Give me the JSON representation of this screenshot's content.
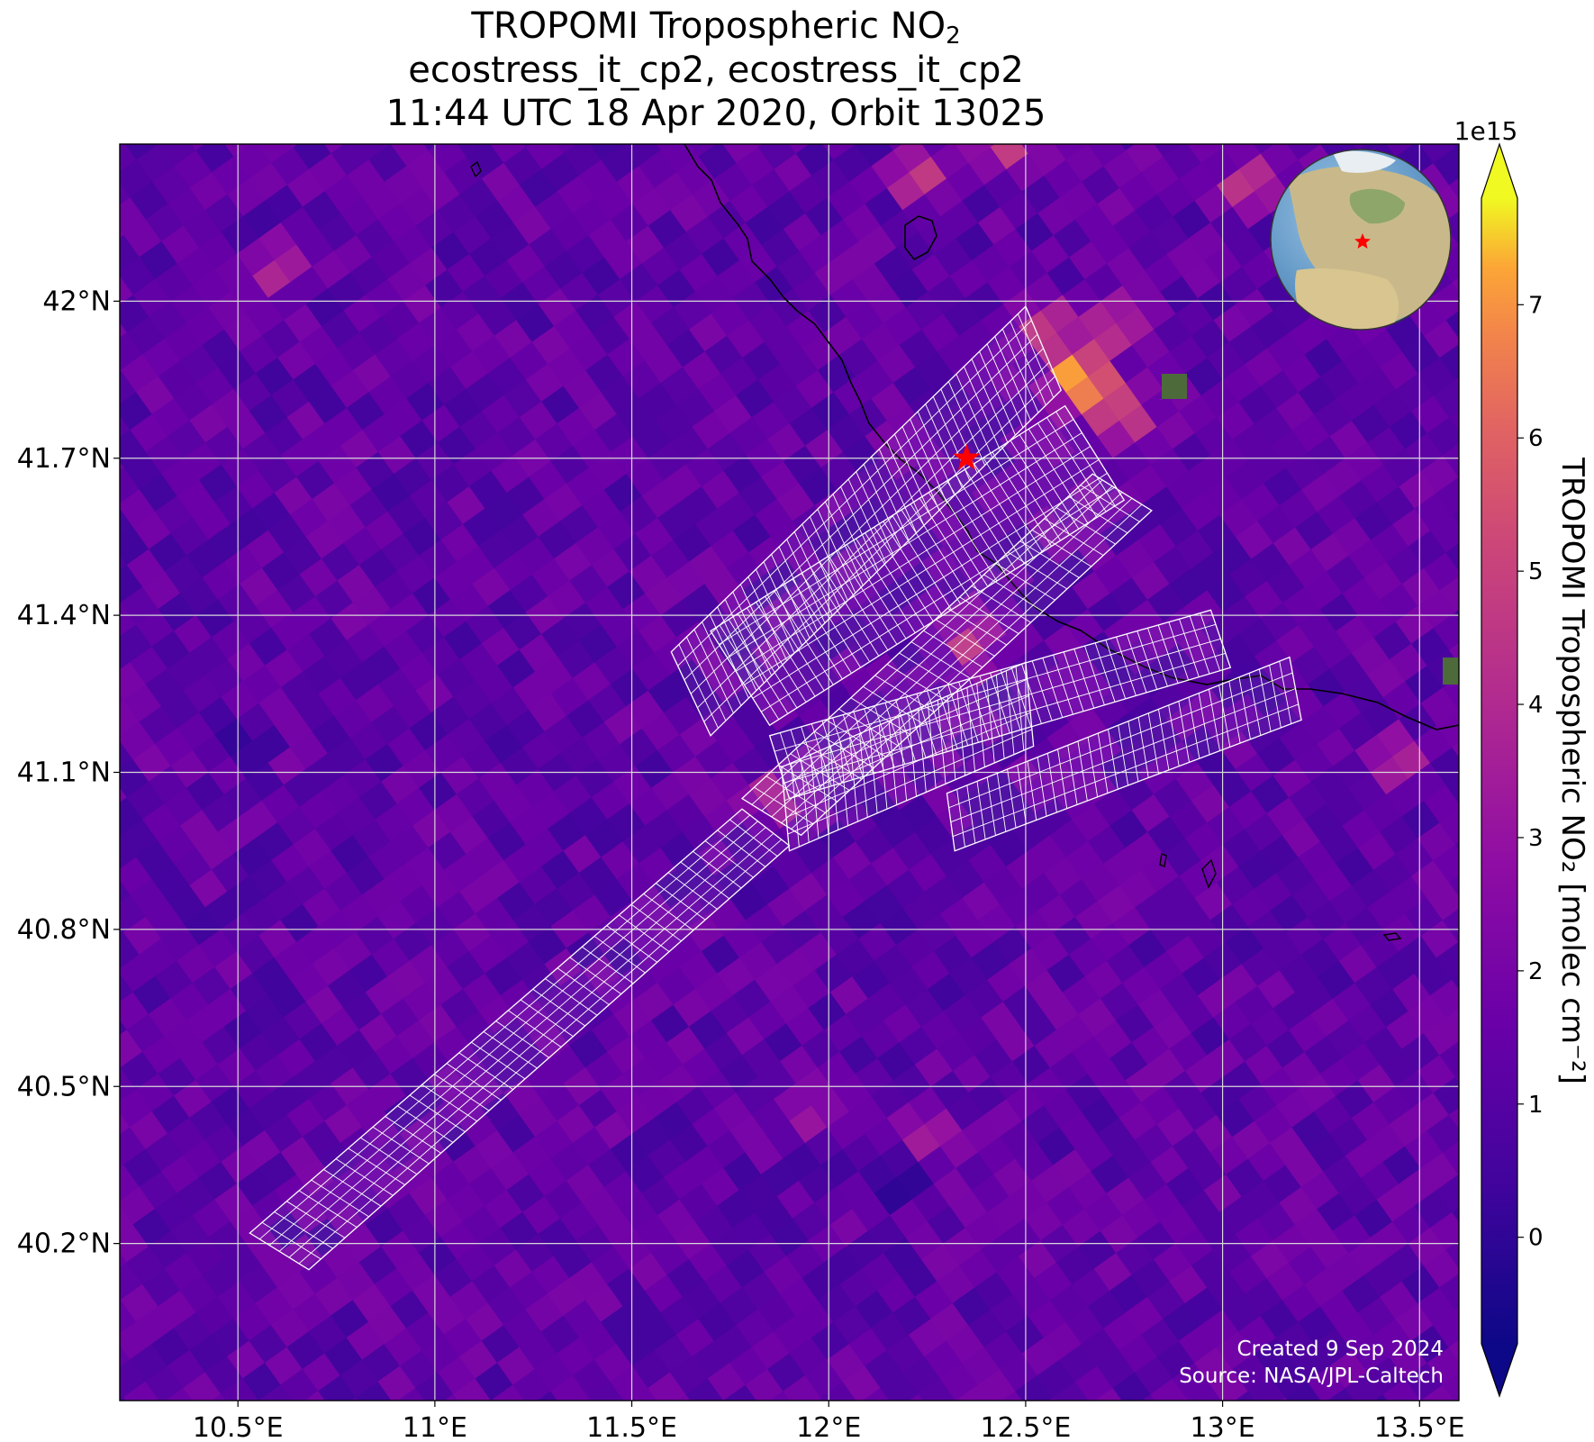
{
  "title": {
    "line1_main": "TROPOMI Tropospheric NO",
    "line1_sub": "2",
    "line2": "ecostress_it_cp2, ecostress_it_cp2",
    "line3": "11:44 UTC 18 Apr 2020, Orbit 13025"
  },
  "axes": {
    "lon_ticks": [
      10.5,
      11.0,
      11.5,
      12.0,
      12.5,
      13.0,
      13.5
    ],
    "lon_labels": [
      "10.5°E",
      "11°E",
      "11.5°E",
      "12°E",
      "12.5°E",
      "13°E",
      "13.5°E"
    ],
    "lat_ticks": [
      42.0,
      41.7,
      41.4,
      41.1,
      40.8,
      40.5,
      40.2
    ],
    "lat_labels": [
      "42°N",
      "41.7°N",
      "41.4°N",
      "41.1°N",
      "40.8°N",
      "40.5°N",
      "40.2°N"
    ],
    "lon_range": [
      10.2,
      13.6
    ],
    "lat_range": [
      39.9,
      42.3
    ],
    "grid": true,
    "grid_color": "#d8d8d8"
  },
  "colorbar": {
    "label": "TROPOMI Tropospheric NO₂ [molec cm⁻²]",
    "exponent": "1e15",
    "ticks": [
      0,
      1,
      2,
      3,
      4,
      5,
      6,
      7
    ],
    "tick_labels": [
      "0",
      "1",
      "2",
      "3",
      "4",
      "5",
      "6",
      "7"
    ],
    "range": [
      -0.8,
      7.8
    ],
    "colormap": "plasma",
    "extend": "both"
  },
  "credits": {
    "created": "Created 9 Sep 2024",
    "source": "Source: NASA/JPL-Caltech"
  },
  "marker": {
    "lon": 12.35,
    "lat": 41.7,
    "symbol": "star",
    "color": "#ff0000"
  },
  "inset_globe": {
    "marker_color": "#ff0000"
  },
  "chart_data": {
    "type": "heatmap",
    "title": "TROPOMI Tropospheric NO₂",
    "subtitle": "ecostress_it_cp2, ecostress_it_cp2 — 11:44 UTC 18 Apr 2020, Orbit 13025",
    "background_value": 1.3,
    "hotspots": [
      {
        "lon": 12.62,
        "lat": 41.87,
        "value": 7.4
      },
      {
        "lon": 12.67,
        "lat": 41.83,
        "value": 7.2
      },
      {
        "lon": 12.75,
        "lat": 41.78,
        "value": 5.6
      },
      {
        "lon": 12.55,
        "lat": 41.96,
        "value": 5.2
      },
      {
        "lon": 12.72,
        "lat": 41.95,
        "value": 5.0
      },
      {
        "lon": 12.36,
        "lat": 41.35,
        "value": 4.8
      },
      {
        "lon": 13.07,
        "lat": 42.22,
        "value": 5.3
      },
      {
        "lon": 12.23,
        "lat": 42.24,
        "value": 5.0
      },
      {
        "lon": 12.45,
        "lat": 42.29,
        "value": 4.8
      },
      {
        "lon": 10.6,
        "lat": 42.06,
        "value": 4.4
      },
      {
        "lon": 11.85,
        "lat": 41.05,
        "value": 4.2
      },
      {
        "lon": 12.25,
        "lat": 40.4,
        "value": 3.9
      },
      {
        "lon": 11.95,
        "lat": 40.45,
        "value": 3.6
      },
      {
        "lon": 13.45,
        "lat": 41.12,
        "value": 4.0
      }
    ],
    "lows": [
      {
        "lon": 12.18,
        "lat": 40.32,
        "value": -0.6
      },
      {
        "lon": 11.8,
        "lat": 40.88,
        "value": 0.0
      },
      {
        "lon": 12.45,
        "lat": 40.98,
        "value": 0.2
      },
      {
        "lon": 10.5,
        "lat": 41.17,
        "value": 0.1
      }
    ],
    "footprint_swaths": [
      {
        "name": "swath-1",
        "corners": [
          [
            10.53,
            40.22
          ],
          [
            10.68,
            40.15
          ],
          [
            11.9,
            40.96
          ],
          [
            11.78,
            41.03
          ]
        ]
      },
      {
        "name": "swath-2",
        "corners": [
          [
            11.6,
            41.33
          ],
          [
            12.5,
            41.99
          ],
          [
            12.59,
            41.83
          ],
          [
            11.7,
            41.17
          ]
        ]
      },
      {
        "name": "swath-3",
        "corners": [
          [
            11.78,
            41.05
          ],
          [
            11.93,
            40.98
          ],
          [
            12.82,
            41.6
          ],
          [
            12.67,
            41.67
          ]
        ]
      },
      {
        "name": "swath-4",
        "corners": [
          [
            11.7,
            41.37
          ],
          [
            12.6,
            41.8
          ],
          [
            12.75,
            41.62
          ],
          [
            11.85,
            41.19
          ]
        ]
      },
      {
        "name": "swath-5",
        "corners": [
          [
            11.88,
            41.11
          ],
          [
            12.5,
            41.31
          ],
          [
            12.52,
            41.15
          ],
          [
            11.9,
            40.95
          ]
        ]
      },
      {
        "name": "swath-6",
        "corners": [
          [
            11.85,
            41.17
          ],
          [
            12.97,
            41.41
          ],
          [
            13.02,
            41.3
          ],
          [
            11.9,
            41.05
          ]
        ]
      },
      {
        "name": "swath-7",
        "corners": [
          [
            12.3,
            41.06
          ],
          [
            13.17,
            41.32
          ],
          [
            13.2,
            41.2
          ],
          [
            12.32,
            40.95
          ]
        ]
      }
    ]
  }
}
